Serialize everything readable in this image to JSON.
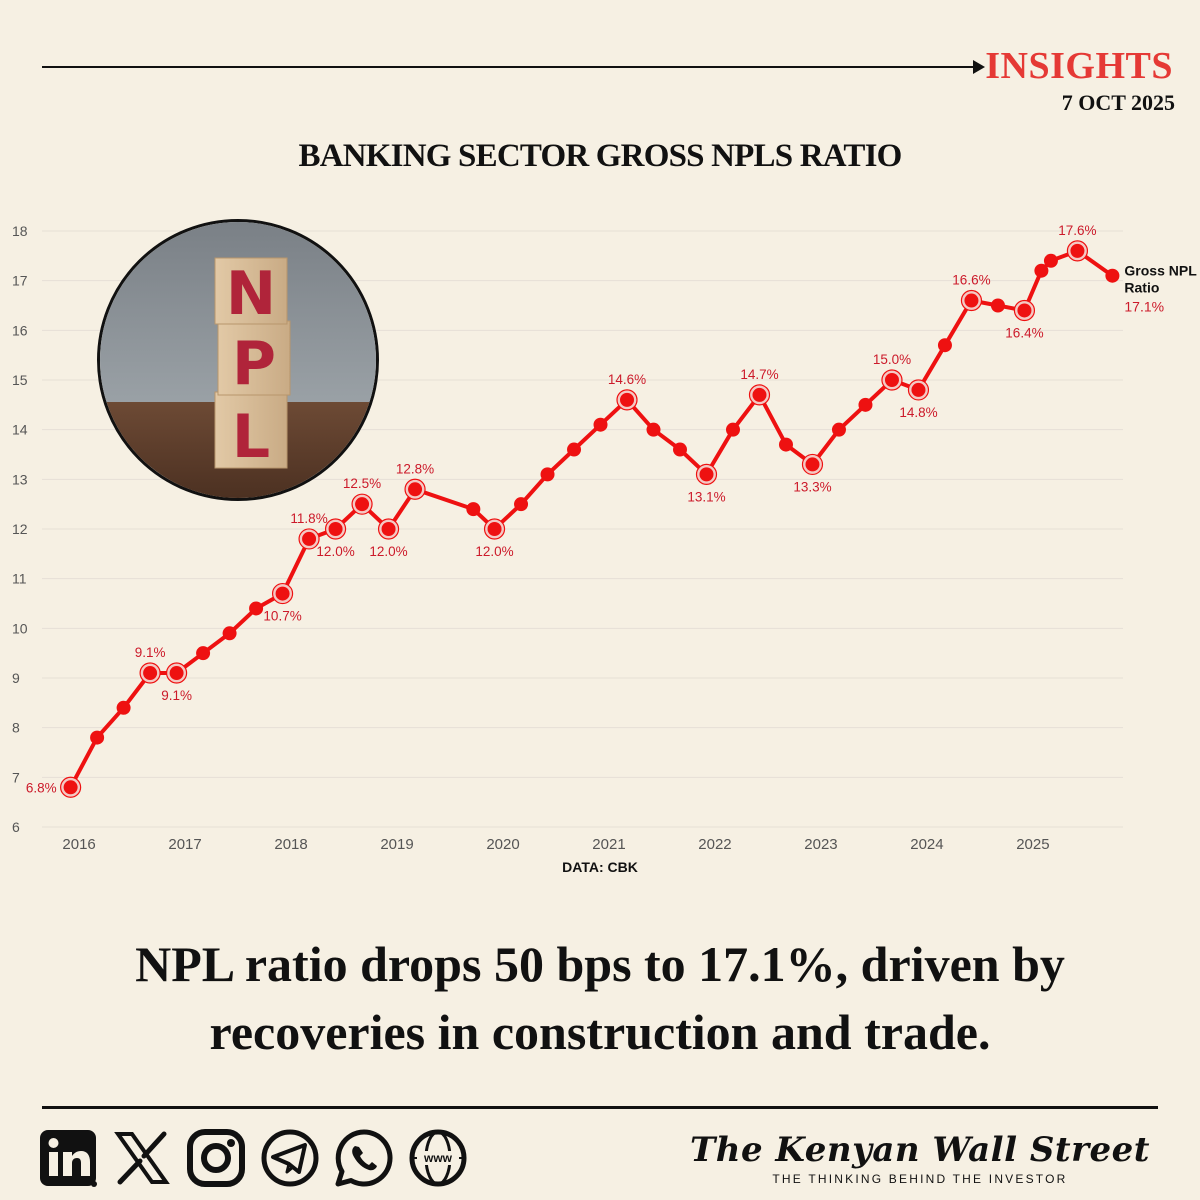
{
  "header": {
    "label": "INSIGHTS",
    "date": "7 OCT 2025"
  },
  "colors": {
    "background": "#f6f0e3",
    "accent": "#e53935",
    "line": "#ee1111",
    "label": "#cc1a2a"
  },
  "photo": {
    "letters": [
      "N",
      "P",
      "L"
    ]
  },
  "chart_data": {
    "type": "line",
    "title": "BANKING SECTOR GROSS NPLS RATIO",
    "source": "DATA: CBK",
    "xlabel": "",
    "ylabel": "",
    "ylim": [
      6,
      18
    ],
    "xlim": [
      2015.65,
      2025.85
    ],
    "y_ticks": [
      "6",
      "7",
      "8",
      "9",
      "10",
      "11",
      "12",
      "13",
      "14",
      "15",
      "16",
      "17",
      "18"
    ],
    "x_ticks": [
      "2016",
      "2017",
      "2018",
      "2019",
      "2020",
      "2021",
      "2022",
      "2023",
      "2024",
      "2025"
    ],
    "grid": true,
    "series": [
      {
        "name": "Gross NPL Ratio",
        "end_label": [
          "Gross NPL",
          "Ratio"
        ],
        "end_value_label": "17.1%",
        "x": [
          2015.92,
          2016.17,
          2016.42,
          2016.67,
          2016.92,
          2017.17,
          2017.42,
          2017.67,
          2017.92,
          2018.17,
          2018.42,
          2018.67,
          2018.92,
          2019.17,
          2019.72,
          2019.92,
          2020.17,
          2020.42,
          2020.67,
          2020.92,
          2021.17,
          2021.42,
          2021.67,
          2021.92,
          2022.17,
          2022.42,
          2022.67,
          2022.92,
          2023.17,
          2023.42,
          2023.67,
          2023.92,
          2024.17,
          2024.42,
          2024.67,
          2024.92,
          2025.08,
          2025.17,
          2025.42,
          2025.75
        ],
        "y": [
          6.8,
          7.8,
          8.4,
          9.1,
          9.1,
          9.5,
          9.9,
          10.4,
          10.7,
          11.8,
          12.0,
          12.5,
          12.0,
          12.8,
          12.4,
          12.0,
          12.5,
          13.1,
          13.6,
          14.1,
          14.6,
          14.0,
          13.6,
          13.1,
          14.0,
          14.7,
          13.7,
          13.3,
          14.0,
          14.5,
          15.0,
          14.8,
          15.7,
          16.6,
          16.5,
          16.4,
          17.2,
          17.4,
          17.6,
          17.1
        ]
      }
    ],
    "annotations": [
      {
        "i": 0,
        "text": "6.8%",
        "pos": "left"
      },
      {
        "i": 3,
        "text": "9.1%",
        "pos": "above"
      },
      {
        "i": 4,
        "text": "9.1%",
        "pos": "below"
      },
      {
        "i": 8,
        "text": "10.7%",
        "pos": "below"
      },
      {
        "i": 9,
        "text": "11.8%",
        "pos": "above"
      },
      {
        "i": 10,
        "text": "12.0%",
        "pos": "below"
      },
      {
        "i": 11,
        "text": "12.5%",
        "pos": "above"
      },
      {
        "i": 12,
        "text": "12.0%",
        "pos": "below"
      },
      {
        "i": 13,
        "text": "12.8%",
        "pos": "above"
      },
      {
        "i": 15,
        "text": "12.0%",
        "pos": "below"
      },
      {
        "i": 20,
        "text": "14.6%",
        "pos": "above"
      },
      {
        "i": 23,
        "text": "13.1%",
        "pos": "below"
      },
      {
        "i": 25,
        "text": "14.7%",
        "pos": "above"
      },
      {
        "i": 27,
        "text": "13.3%",
        "pos": "below"
      },
      {
        "i": 30,
        "text": "15.0%",
        "pos": "above"
      },
      {
        "i": 31,
        "text": "14.8%",
        "pos": "below"
      },
      {
        "i": 33,
        "text": "16.6%",
        "pos": "above"
      },
      {
        "i": 35,
        "text": "16.4%",
        "pos": "below"
      },
      {
        "i": 38,
        "text": "17.6%",
        "pos": "above"
      }
    ]
  },
  "headline": {
    "line1": "NPL ratio drops 50 bps to 17.1%, driven by",
    "line2": "recoveries in construction and trade."
  },
  "footer": {
    "icons": [
      "linkedin-icon",
      "x-icon",
      "instagram-icon",
      "telegram-icon",
      "whatsapp-icon",
      "web-icon"
    ],
    "web_label": "www",
    "brand_name": "The Kenyan Wall Street",
    "brand_tagline": "THE THINKING BEHIND THE INVESTOR"
  }
}
